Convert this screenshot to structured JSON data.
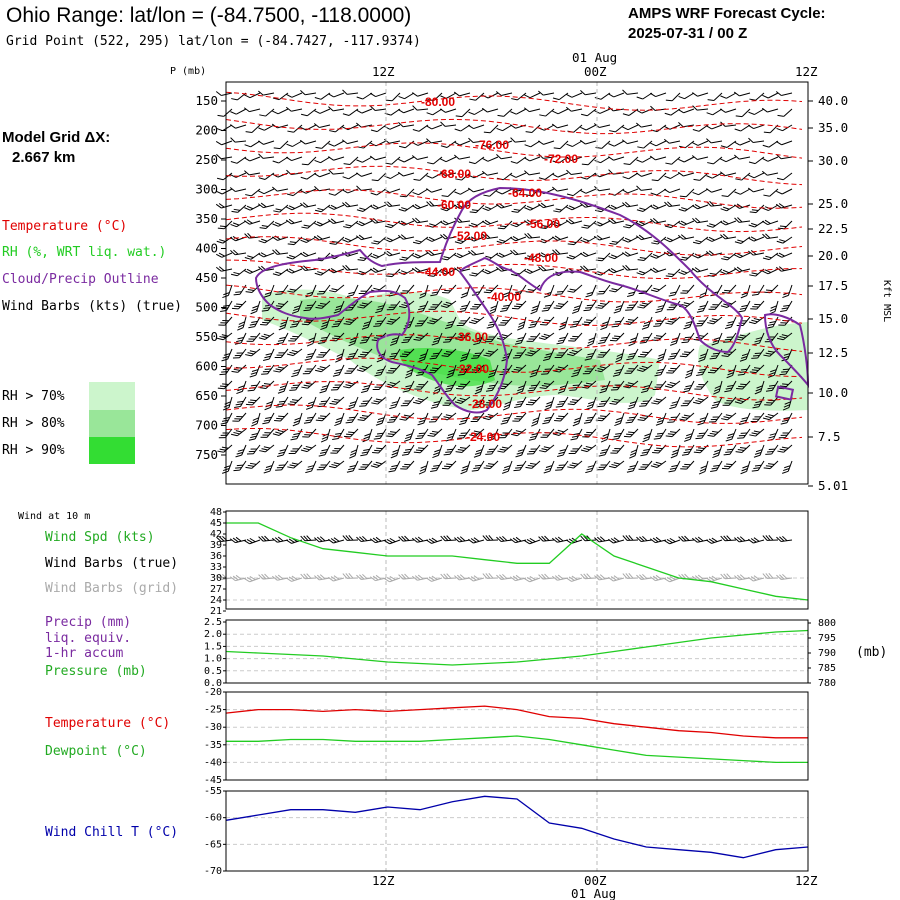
{
  "header": {
    "title": "Ohio Range:  lat/lon = (-84.7500, -118.0000)",
    "grid_point": "Grid Point (522, 295) lat/lon = (-84.7427, -117.9374)",
    "cycle_label": "AMPS WRF Forecast Cycle:",
    "cycle_value": "2025-07-31 / 00  Z"
  },
  "time_axis": {
    "labels": [
      "12Z",
      "00Z",
      "12Z"
    ],
    "date_label": "01 Aug",
    "bottom_labels": [
      "12Z",
      "00Z"
    ]
  },
  "colors": {
    "temperature": "#e00000",
    "rh": "#22cc22",
    "cloud": "#7a2aa0",
    "wind": "#000000",
    "wind_grid": "#aaaaaa",
    "windchill": "#0000aa",
    "rh70": "#ccf5cc",
    "rh80": "#99e699",
    "rh90": "#33dd33"
  },
  "sidebar": {
    "model_grid_label": "Model Grid ΔX:",
    "model_grid_value": "2.667 km",
    "legend": {
      "temperature": "Temperature (°C)",
      "rh": "RH (%, WRT liq. wat.)",
      "cloud": "Cloud/Precip Outline",
      "wind": "Wind Barbs (kts) (true)"
    },
    "rh_legend": [
      "RH > 70%",
      "RH > 80%",
      "RH > 90%"
    ]
  },
  "panel_labels": {
    "wind10": "Wind at 10 m",
    "wind_spd": "Wind Spd (kts)",
    "wind_barbs_true": "Wind Barbs (true)",
    "wind_barbs_grid": "Wind Barbs (grid)",
    "precip": "Precip (mm)",
    "liq": "liq. equiv.",
    "accum": "1-hr accum",
    "pressure": "Pressure (mb)",
    "pressure_unit": "(mb)",
    "temperature": "Temperature (°C)",
    "dewpoint": "Dewpoint (°C)",
    "windchill": "Wind Chill T (°C)"
  },
  "chart_data": [
    {
      "type": "line",
      "panel": "cross-section",
      "ylabel": "P (mb)",
      "right_label": "Kft MSL",
      "pressure_ticks": [
        150,
        200,
        250,
        300,
        350,
        400,
        450,
        500,
        550,
        600,
        650,
        700,
        750
      ],
      "height_ticks": [
        "40.0",
        "35.0",
        "30.0",
        "25.0",
        "22.5",
        "20.0",
        "17.5",
        "15.0",
        "12.5",
        "10.0",
        "7.5",
        "5.01"
      ],
      "isotherm_labels": [
        "-80.00",
        "-76.00",
        "-72.00",
        "-68.00",
        "-64.00",
        "-60.00",
        "-56.00",
        "-52.00",
        "-48.00",
        "-44.00",
        "-40.00",
        "-36.00",
        "-32.00",
        "-28.00",
        "-24.00"
      ]
    },
    {
      "type": "line",
      "panel": "wind-speed",
      "title": "Wind at 10 m",
      "y_ticks": [
        48,
        45,
        42,
        39,
        36,
        33,
        30,
        27,
        24,
        21
      ],
      "ylim": [
        21,
        48
      ],
      "series": [
        {
          "name": "Wind Spd (kts)",
          "x": [
            0,
            2,
            4,
            6,
            8,
            10,
            12,
            14,
            16,
            18,
            20,
            22,
            24,
            26,
            28,
            30,
            32,
            34,
            36
          ],
          "values": [
            45,
            45,
            41,
            38,
            37,
            36,
            36,
            36,
            35,
            34,
            34,
            42,
            36,
            33,
            30,
            29,
            27,
            25,
            24
          ]
        }
      ]
    },
    {
      "type": "line",
      "panel": "precip-pressure",
      "y_ticks_left": [
        "2.5",
        "2.0",
        "1.5",
        "1.0",
        "0.5",
        "0.0"
      ],
      "y_ticks_right": [
        800,
        795,
        790,
        785,
        780
      ],
      "series": [
        {
          "name": "Pressure (mb)",
          "x": [
            0,
            2,
            4,
            6,
            8,
            10,
            12,
            14,
            16,
            18,
            20,
            22,
            24,
            26,
            28,
            30,
            32,
            34,
            36
          ],
          "values": [
            790.5,
            790,
            789.5,
            789,
            788,
            787,
            786.5,
            786,
            786.5,
            787,
            788,
            789,
            790.5,
            792,
            793.5,
            795,
            796,
            797,
            797.5
          ]
        }
      ]
    },
    {
      "type": "line",
      "panel": "temperature-dewpoint",
      "y_ticks": [
        -20,
        -25,
        -30,
        -35,
        -40,
        -45
      ],
      "ylim": [
        -45,
        -20
      ],
      "series": [
        {
          "name": "Temperature (°C)",
          "x": [
            0,
            2,
            4,
            6,
            8,
            10,
            12,
            14,
            16,
            18,
            20,
            22,
            24,
            26,
            28,
            30,
            32,
            34,
            36
          ],
          "values": [
            -26,
            -25,
            -25,
            -25.5,
            -25,
            -25.5,
            -25,
            -24.5,
            -24,
            -25,
            -27,
            -27.5,
            -29,
            -30,
            -31,
            -31.5,
            -32.5,
            -33,
            -33
          ]
        },
        {
          "name": "Dewpoint (°C)",
          "x": [
            0,
            2,
            4,
            6,
            8,
            10,
            12,
            14,
            16,
            18,
            20,
            22,
            24,
            26,
            28,
            30,
            32,
            34,
            36
          ],
          "values": [
            -34,
            -34,
            -33.5,
            -33.5,
            -34,
            -34,
            -34,
            -33.5,
            -33,
            -32.5,
            -33.5,
            -35,
            -36.5,
            -38,
            -38.5,
            -39,
            -39.5,
            -40,
            -40
          ]
        }
      ]
    },
    {
      "type": "line",
      "panel": "wind-chill",
      "y_ticks": [
        -55,
        -60,
        -65,
        -70
      ],
      "ylim": [
        -70,
        -55
      ],
      "series": [
        {
          "name": "Wind Chill T (°C)",
          "x": [
            0,
            2,
            4,
            6,
            8,
            10,
            12,
            14,
            16,
            18,
            20,
            22,
            24,
            26,
            28,
            30,
            32,
            34,
            36
          ],
          "values": [
            -60.5,
            -59.5,
            -58.5,
            -58.5,
            -59,
            -58,
            -58.5,
            -57,
            -56,
            -56.5,
            -61,
            -62,
            -64,
            -65.5,
            -66,
            -66.5,
            -67.5,
            -66,
            -65.5
          ]
        }
      ]
    }
  ]
}
